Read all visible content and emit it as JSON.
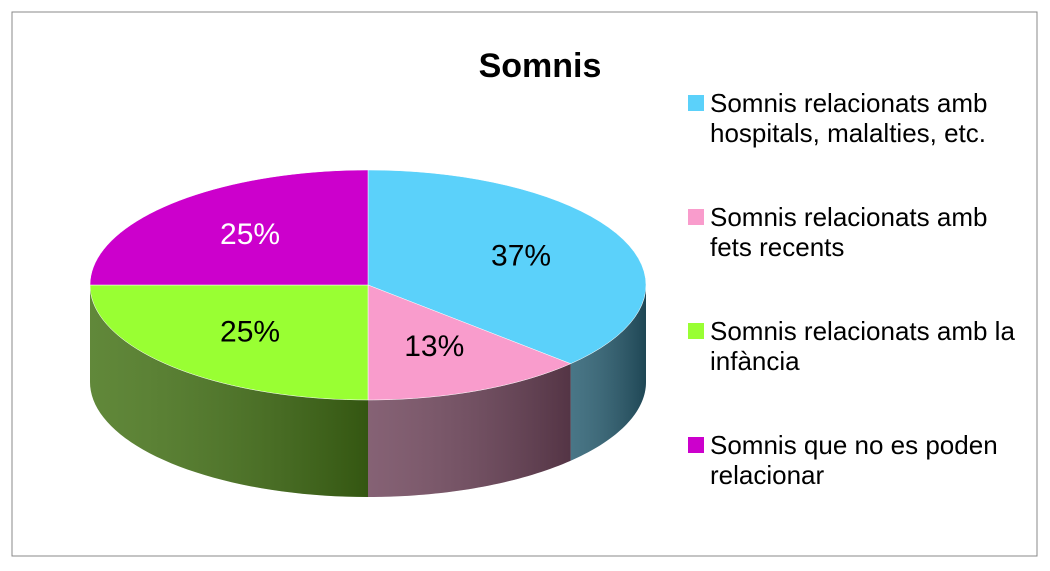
{
  "chart_data": {
    "type": "pie",
    "title": "Somnis",
    "categories": [
      "Somnis relacionats amb hospitals, malalties, etc.",
      "Somnis relacionats amb fets recents",
      "Somnis relacionats amb la infància",
      "Somnis que no es poden relacionar"
    ],
    "values": [
      37,
      13,
      25,
      25
    ],
    "value_labels": [
      "37%",
      "13%",
      "25%",
      "25%"
    ],
    "colors": [
      "#5bd1fa",
      "#f99ccc",
      "#99ff33",
      "#cc00cc"
    ],
    "legend": "right"
  }
}
